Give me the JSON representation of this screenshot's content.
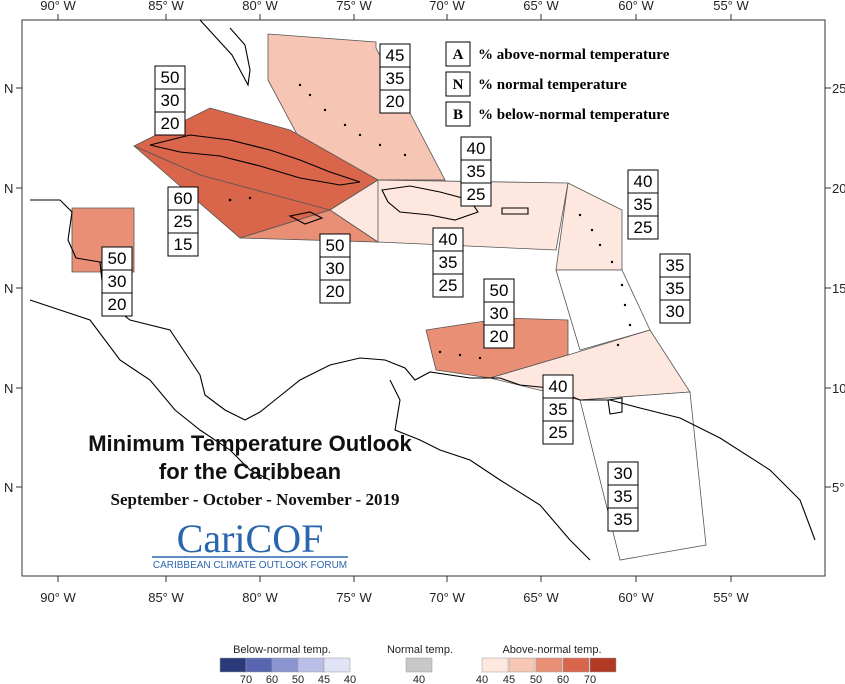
{
  "map": {
    "title_line1": "Minimum Temperature Outlook",
    "title_line2": "for the Caribbean",
    "subtitle": "September - October - November - 2019",
    "logo_text": "CariCOF",
    "logo_subtext": "CARIBBEAN CLIMATE OUTLOOK FORUM",
    "longitude_labels": [
      "90° W",
      "85° W",
      "80° W",
      "75° W",
      "70° W",
      "65° W",
      "60° W",
      "55° W"
    ],
    "latitude_labels_left": [
      "N",
      "N",
      "N",
      "N",
      "N"
    ],
    "latitude_labels_right": [
      "25",
      "20",
      "15",
      "10",
      "5°"
    ]
  },
  "key": {
    "items": [
      {
        "letter": "A",
        "label": "% above-normal temperature"
      },
      {
        "letter": "N",
        "label": "% normal temperature"
      },
      {
        "letter": "B",
        "label": "% below-normal temperature"
      }
    ]
  },
  "regions": [
    {
      "id": "bahamas",
      "values": [
        "45",
        "35",
        "20"
      ],
      "color": "#f6c5b3"
    },
    {
      "id": "cuba",
      "values": [
        "50",
        "30",
        "20"
      ],
      "color": "#d9654a"
    },
    {
      "id": "cayman-jamaica",
      "values": [
        "60",
        "25",
        "15"
      ],
      "color": "#d9654a"
    },
    {
      "id": "belize",
      "values": [
        "50",
        "30",
        "20"
      ],
      "color": "#e98f75"
    },
    {
      "id": "jamaica-haiti-south",
      "values": [
        "50",
        "30",
        "20"
      ],
      "color": "#e98f75"
    },
    {
      "id": "hispaniola-pr",
      "values": [
        "40",
        "35",
        "25"
      ],
      "color": "#fde7df"
    },
    {
      "id": "hispaniola-north",
      "values": [
        "40",
        "35",
        "25"
      ],
      "color": "#fde7df"
    },
    {
      "id": "leeward",
      "values": [
        "40",
        "35",
        "25"
      ],
      "color": "#fde7df"
    },
    {
      "id": "windward",
      "values": [
        "35",
        "35",
        "30"
      ],
      "color": "#ffffff"
    },
    {
      "id": "abc-islands",
      "values": [
        "50",
        "30",
        "20"
      ],
      "color": "#e98f75"
    },
    {
      "id": "trinidad",
      "values": [
        "40",
        "35",
        "25"
      ],
      "color": "#fde7df"
    },
    {
      "id": "guianas",
      "values": [
        "30",
        "35",
        "35"
      ],
      "color": "#ffffff"
    }
  ],
  "scale": {
    "below_label": "Below-normal temp.",
    "normal_label": "Normal temp.",
    "above_label": "Above-normal temp.",
    "below_ticks": [
      "70",
      "60",
      "50",
      "45",
      "40"
    ],
    "normal_ticks": [
      "40"
    ],
    "above_ticks": [
      "40",
      "45",
      "50",
      "60",
      "70"
    ],
    "below_colors": [
      "#2b3a7a",
      "#5865b0",
      "#8a94cf",
      "#b9bfe6",
      "#e1e4f6"
    ],
    "normal_color": "#c8c8c8",
    "above_colors": [
      "#fde7df",
      "#f6c5b3",
      "#e98f75",
      "#d9654a",
      "#b23a25"
    ]
  }
}
